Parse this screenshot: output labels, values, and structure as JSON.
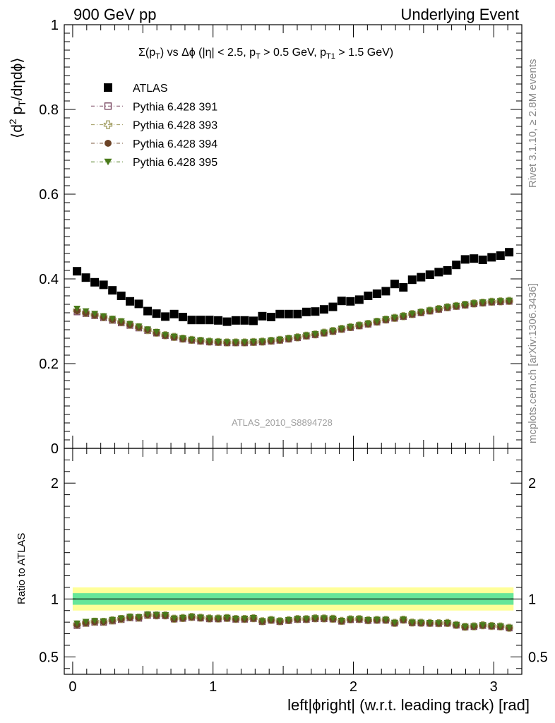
{
  "header": {
    "left": "900 GeV pp",
    "right": "Underlying Event"
  },
  "side_labels": {
    "rivet": "Rivet 3.1.10, ≥ 2.8M events",
    "mcplots": "mcplots.cern.ch [arXiv:1306.3436]"
  },
  "analysis_id": "ATLAS_2010_S8894728",
  "chart_data": [
    {
      "type": "scatter",
      "title": "Σ(p_T) vs Δφ (|η| < 2.5, p_T > 0.5 GeV, p_T1 > 1.5 GeV)",
      "title_parts": {
        "a": "Σ(p",
        "b": "T",
        "c": ") vs Δϕ (|η| < 2.5, p",
        "d": "T",
        "e": " > 0.5 GeV, p",
        "f": "T1",
        "g": " > 1.5 GeV)"
      },
      "ylabel": "⟨d² p_T/dηdϕ⟩",
      "ylabel_parts": {
        "a": "⟨d",
        "b": "2",
        "c": " p",
        "d": "T",
        "e": "/dηdϕ⟩"
      },
      "xlim": [
        -0.06,
        3.2
      ],
      "ylim": [
        0,
        1
      ],
      "y_ticks": [
        0,
        0.2,
        0.4,
        0.6,
        0.8,
        1
      ],
      "y_tick_labels": [
        "0",
        "0.2",
        "0.4",
        "0.6",
        "0.8",
        "1"
      ],
      "grid": false,
      "legend_position": "top-left",
      "x": [
        0.031,
        0.094,
        0.157,
        0.22,
        0.283,
        0.346,
        0.408,
        0.471,
        0.534,
        0.597,
        0.66,
        0.723,
        0.785,
        0.848,
        0.911,
        0.974,
        1.037,
        1.1,
        1.162,
        1.225,
        1.288,
        1.351,
        1.414,
        1.476,
        1.539,
        1.602,
        1.665,
        1.728,
        1.791,
        1.854,
        1.916,
        1.979,
        2.042,
        2.105,
        2.168,
        2.231,
        2.294,
        2.356,
        2.419,
        2.482,
        2.545,
        2.608,
        2.67,
        2.733,
        2.796,
        2.859,
        2.922,
        2.985,
        3.048,
        3.11
      ],
      "series": [
        {
          "name": "ATLAS",
          "marker": "filled-square",
          "color": "#000000",
          "values": [
            0.418,
            0.403,
            0.392,
            0.386,
            0.373,
            0.36,
            0.347,
            0.341,
            0.324,
            0.318,
            0.311,
            0.317,
            0.31,
            0.303,
            0.303,
            0.303,
            0.302,
            0.299,
            0.302,
            0.302,
            0.301,
            0.312,
            0.31,
            0.317,
            0.317,
            0.317,
            0.322,
            0.323,
            0.328,
            0.334,
            0.348,
            0.347,
            0.351,
            0.36,
            0.365,
            0.371,
            0.388,
            0.38,
            0.398,
            0.404,
            0.41,
            0.416,
            0.42,
            0.433,
            0.446,
            0.448,
            0.445,
            0.451,
            0.455,
            0.463
          ]
        },
        {
          "name": "Pythia 6.428 391",
          "marker": "open-square",
          "color": "#7b4a63",
          "values": [
            0.322,
            0.318,
            0.313,
            0.308,
            0.302,
            0.296,
            0.29,
            0.284,
            0.278,
            0.272,
            0.266,
            0.262,
            0.258,
            0.255,
            0.253,
            0.251,
            0.25,
            0.249,
            0.249,
            0.249,
            0.25,
            0.251,
            0.253,
            0.255,
            0.258,
            0.261,
            0.265,
            0.268,
            0.272,
            0.276,
            0.281,
            0.285,
            0.289,
            0.293,
            0.298,
            0.303,
            0.307,
            0.311,
            0.316,
            0.32,
            0.324,
            0.328,
            0.332,
            0.335,
            0.338,
            0.341,
            0.343,
            0.345,
            0.346,
            0.347
          ]
        },
        {
          "name": "Pythia 6.428 393",
          "marker": "open-cross",
          "color": "#9e9a5c",
          "values": [
            0.326,
            0.32,
            0.315,
            0.31,
            0.304,
            0.298,
            0.292,
            0.286,
            0.279,
            0.273,
            0.267,
            0.263,
            0.259,
            0.256,
            0.254,
            0.252,
            0.251,
            0.25,
            0.25,
            0.25,
            0.251,
            0.252,
            0.254,
            0.256,
            0.259,
            0.262,
            0.266,
            0.269,
            0.273,
            0.277,
            0.282,
            0.286,
            0.29,
            0.294,
            0.299,
            0.304,
            0.308,
            0.312,
            0.317,
            0.321,
            0.325,
            0.329,
            0.333,
            0.336,
            0.339,
            0.342,
            0.344,
            0.346,
            0.347,
            0.348
          ]
        },
        {
          "name": "Pythia 6.428 394",
          "marker": "filled-circle",
          "color": "#6b4326",
          "values": [
            0.324,
            0.319,
            0.314,
            0.309,
            0.303,
            0.297,
            0.291,
            0.285,
            0.279,
            0.272,
            0.266,
            0.262,
            0.258,
            0.255,
            0.253,
            0.251,
            0.25,
            0.249,
            0.249,
            0.249,
            0.25,
            0.251,
            0.253,
            0.255,
            0.258,
            0.261,
            0.265,
            0.268,
            0.272,
            0.276,
            0.281,
            0.285,
            0.289,
            0.293,
            0.298,
            0.303,
            0.307,
            0.311,
            0.316,
            0.32,
            0.324,
            0.328,
            0.332,
            0.335,
            0.338,
            0.341,
            0.343,
            0.345,
            0.346,
            0.347
          ]
        },
        {
          "name": "Pythia 6.428 395",
          "marker": "filled-triangle-down",
          "color": "#4a7a1a",
          "values": [
            0.33,
            0.324,
            0.318,
            0.312,
            0.306,
            0.3,
            0.294,
            0.288,
            0.281,
            0.275,
            0.268,
            0.264,
            0.26,
            0.257,
            0.255,
            0.253,
            0.252,
            0.251,
            0.251,
            0.251,
            0.252,
            0.253,
            0.255,
            0.257,
            0.26,
            0.263,
            0.267,
            0.27,
            0.274,
            0.278,
            0.283,
            0.287,
            0.291,
            0.295,
            0.3,
            0.305,
            0.309,
            0.313,
            0.318,
            0.322,
            0.326,
            0.33,
            0.334,
            0.337,
            0.34,
            0.343,
            0.345,
            0.347,
            0.348,
            0.349
          ]
        }
      ]
    },
    {
      "type": "scatter",
      "ylabel": "Ratio to ATLAS",
      "xlabel": "left|ϕright| (w.r.t. leading track) [rad]",
      "xlim": [
        -0.06,
        3.2
      ],
      "ylim": [
        0.35,
        2.3
      ],
      "y_ticks": [
        0.5,
        1,
        2
      ],
      "y_tick_labels": [
        "0.5",
        "1",
        "2"
      ],
      "x_ticks": [
        0,
        1,
        2,
        3
      ],
      "x_tick_labels": [
        "0",
        "1",
        "2",
        "3"
      ],
      "reference_band": {
        "inner": [
          0.95,
          1.05
        ],
        "outer": [
          0.9,
          1.1
        ],
        "inner_color": "#66e699",
        "outer_color": "#ffff99"
      },
      "reference_line": 1
    }
  ]
}
